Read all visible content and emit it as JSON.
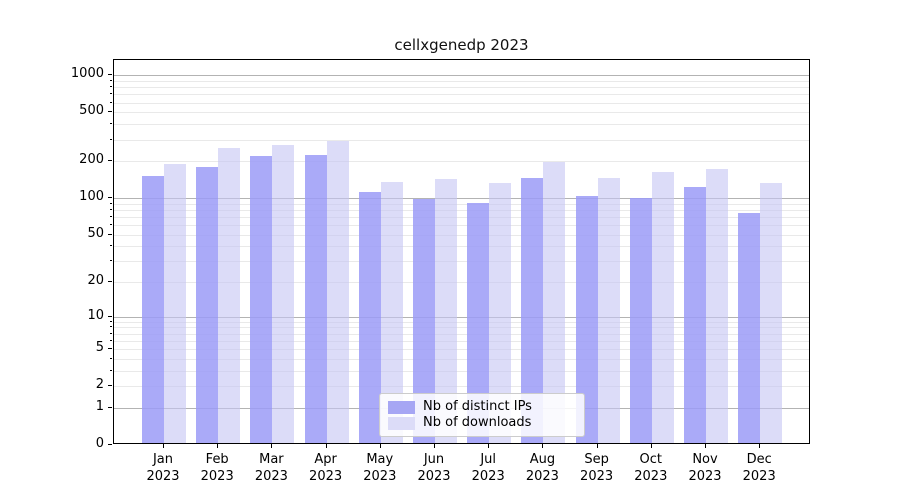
{
  "title": "cellxgenedp 2023",
  "chart_data": {
    "type": "bar",
    "title": "cellxgenedp 2023",
    "categories": [
      "Jan",
      "Feb",
      "Mar",
      "Apr",
      "May",
      "Jun",
      "Jul",
      "Aug",
      "Sep",
      "Oct",
      "Nov",
      "Dec"
    ],
    "year_label": "2023",
    "series": [
      {
        "name": "Nb of distinct IPs",
        "color": "#a6a6f4",
        "rgba": "rgba(155,155,247,0.85)",
        "values": [
          145,
          172,
          212,
          217,
          109,
          95,
          87,
          141,
          100,
          96,
          118,
          72
        ]
      },
      {
        "name": "Nb of downloads",
        "color": "#dcdcf8",
        "rgba": "rgba(197,197,243,0.6)",
        "values": [
          182,
          248,
          260,
          281,
          131,
          139,
          129,
          189,
          142,
          159,
          168,
          129
        ]
      }
    ],
    "yscale": "log1p",
    "yticks": [
      0,
      1,
      2,
      5,
      10,
      20,
      50,
      100,
      200,
      500,
      1000
    ],
    "major_gridlines": [
      1,
      10,
      100,
      1000
    ],
    "ylim": [
      0,
      1330
    ],
    "grid": true,
    "legend_position": "lower center",
    "axis_color": "#000000",
    "grid_major_color": "#b3b3b3",
    "grid_minor_color": "#e9e9e9"
  }
}
